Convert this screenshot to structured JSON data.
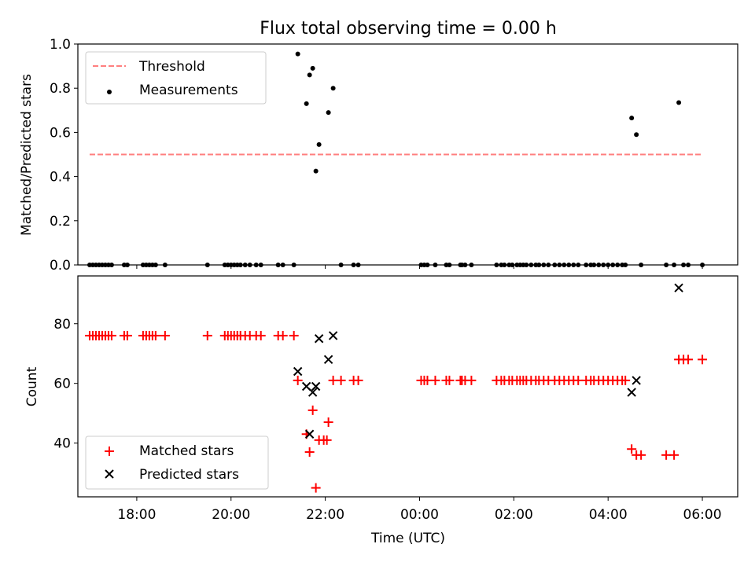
{
  "figure": {
    "title": "Flux total observing time = 0.00 h",
    "xlabel": "Time (UTC)"
  },
  "chart_data": [
    {
      "type": "scatter",
      "title": "Flux total observing time = 0.00 h",
      "ylabel": "Matched/Predicted stars",
      "xlim": [
        "2023-01-01 16:45",
        "2023-01-02 06:45"
      ],
      "ylim": [
        0,
        1.0
      ],
      "yticks": [
        "0.0",
        "0.2",
        "0.4",
        "0.6",
        "0.8",
        "1.0"
      ],
      "legend": {
        "position": "top-left",
        "entries": [
          "Threshold",
          "Measurements"
        ]
      },
      "threshold": {
        "name": "Threshold",
        "value": 0.5,
        "x_start": "2023-01-01 17:00",
        "x_end": "2023-01-02 06:00",
        "color": "#ff7f7f",
        "style": "dashed"
      },
      "series": [
        {
          "name": "Measurements",
          "color": "#000000",
          "marker": "dot",
          "points": [
            [
              "2023-01-01 17:00",
              0
            ],
            [
              "2023-01-01 17:04",
              0
            ],
            [
              "2023-01-01 17:08",
              0
            ],
            [
              "2023-01-01 17:12",
              0
            ],
            [
              "2023-01-01 17:16",
              0
            ],
            [
              "2023-01-01 17:20",
              0
            ],
            [
              "2023-01-01 17:24",
              0
            ],
            [
              "2023-01-01 17:28",
              0
            ],
            [
              "2023-01-01 17:44",
              0
            ],
            [
              "2023-01-01 17:48",
              0
            ],
            [
              "2023-01-01 18:08",
              0
            ],
            [
              "2023-01-01 18:12",
              0
            ],
            [
              "2023-01-01 18:16",
              0
            ],
            [
              "2023-01-01 18:20",
              0
            ],
            [
              "2023-01-01 18:24",
              0
            ],
            [
              "2023-01-01 18:36",
              0
            ],
            [
              "2023-01-01 19:30",
              0
            ],
            [
              "2023-01-01 19:52",
              0
            ],
            [
              "2023-01-01 19:56",
              0
            ],
            [
              "2023-01-01 20:00",
              0
            ],
            [
              "2023-01-01 20:04",
              0
            ],
            [
              "2023-01-01 20:08",
              0
            ],
            [
              "2023-01-01 20:12",
              0
            ],
            [
              "2023-01-01 20:18",
              0
            ],
            [
              "2023-01-01 20:24",
              0
            ],
            [
              "2023-01-01 20:32",
              0
            ],
            [
              "2023-01-01 20:38",
              0
            ],
            [
              "2023-01-01 21:00",
              0
            ],
            [
              "2023-01-01 21:06",
              0
            ],
            [
              "2023-01-01 21:20",
              0
            ],
            [
              "2023-01-01 21:25",
              0.955
            ],
            [
              "2023-01-01 21:36",
              0.73
            ],
            [
              "2023-01-01 21:40",
              0.86
            ],
            [
              "2023-01-01 21:44",
              0.89
            ],
            [
              "2023-01-01 21:48",
              0.425
            ],
            [
              "2023-01-01 21:52",
              0.545
            ],
            [
              "2023-01-01 22:04",
              0.69
            ],
            [
              "2023-01-01 22:10",
              0.8
            ],
            [
              "2023-01-01 22:20",
              0
            ],
            [
              "2023-01-01 22:36",
              0
            ],
            [
              "2023-01-01 22:42",
              0
            ],
            [
              "2023-01-02 00:02",
              0
            ],
            [
              "2023-01-02 00:06",
              0
            ],
            [
              "2023-01-02 00:10",
              0
            ],
            [
              "2023-01-02 00:20",
              0
            ],
            [
              "2023-01-02 00:34",
              0
            ],
            [
              "2023-01-02 00:38",
              0
            ],
            [
              "2023-01-02 00:52",
              0
            ],
            [
              "2023-01-02 00:54",
              0
            ],
            [
              "2023-01-02 00:58",
              0
            ],
            [
              "2023-01-02 01:06",
              0
            ],
            [
              "2023-01-02 01:38",
              0
            ],
            [
              "2023-01-02 01:44",
              0
            ],
            [
              "2023-01-02 01:48",
              0
            ],
            [
              "2023-01-02 01:54",
              0
            ],
            [
              "2023-01-02 01:58",
              0
            ],
            [
              "2023-01-02 02:04",
              0
            ],
            [
              "2023-01-02 02:08",
              0
            ],
            [
              "2023-01-02 02:12",
              0
            ],
            [
              "2023-01-02 02:16",
              0
            ],
            [
              "2023-01-02 02:22",
              0
            ],
            [
              "2023-01-02 02:28",
              0
            ],
            [
              "2023-01-02 02:32",
              0
            ],
            [
              "2023-01-02 02:38",
              0
            ],
            [
              "2023-01-02 02:44",
              0
            ],
            [
              "2023-01-02 02:52",
              0
            ],
            [
              "2023-01-02 02:58",
              0
            ],
            [
              "2023-01-02 03:04",
              0
            ],
            [
              "2023-01-02 03:10",
              0
            ],
            [
              "2023-01-02 03:16",
              0
            ],
            [
              "2023-01-02 03:22",
              0
            ],
            [
              "2023-01-02 03:32",
              0
            ],
            [
              "2023-01-02 03:38",
              0
            ],
            [
              "2023-01-02 03:42",
              0
            ],
            [
              "2023-01-02 03:48",
              0
            ],
            [
              "2023-01-02 03:54",
              0
            ],
            [
              "2023-01-02 04:00",
              0
            ],
            [
              "2023-01-02 04:06",
              0
            ],
            [
              "2023-01-02 04:12",
              0
            ],
            [
              "2023-01-02 04:18",
              0
            ],
            [
              "2023-01-02 04:22",
              0
            ],
            [
              "2023-01-02 04:30",
              0.665
            ],
            [
              "2023-01-02 04:36",
              0.59
            ],
            [
              "2023-01-02 04:42",
              0
            ],
            [
              "2023-01-02 05:14",
              0
            ],
            [
              "2023-01-02 05:24",
              0
            ],
            [
              "2023-01-02 05:30",
              0.735
            ],
            [
              "2023-01-02 05:36",
              0
            ],
            [
              "2023-01-02 05:42",
              0
            ],
            [
              "2023-01-02 06:00",
              0
            ]
          ]
        }
      ]
    },
    {
      "type": "scatter",
      "ylabel": "Count",
      "xlabel": "Time (UTC)",
      "xlim": [
        "2023-01-01 16:45",
        "2023-01-02 06:45"
      ],
      "ylim": [
        22,
        96
      ],
      "yticks": [
        "40",
        "60",
        "80"
      ],
      "xticks": [
        "18:00",
        "20:00",
        "22:00",
        "00:00",
        "02:00",
        "04:00",
        "06:00"
      ],
      "legend": {
        "position": "bottom-left",
        "entries": [
          "Matched stars",
          "Predicted stars"
        ]
      },
      "series": [
        {
          "name": "Matched stars",
          "color": "#ff0000",
          "marker": "plus",
          "points": [
            [
              "2023-01-01 17:00",
              76
            ],
            [
              "2023-01-01 17:04",
              76
            ],
            [
              "2023-01-01 17:08",
              76
            ],
            [
              "2023-01-01 17:12",
              76
            ],
            [
              "2023-01-01 17:16",
              76
            ],
            [
              "2023-01-01 17:20",
              76
            ],
            [
              "2023-01-01 17:24",
              76
            ],
            [
              "2023-01-01 17:28",
              76
            ],
            [
              "2023-01-01 17:44",
              76
            ],
            [
              "2023-01-01 17:48",
              76
            ],
            [
              "2023-01-01 18:08",
              76
            ],
            [
              "2023-01-01 18:12",
              76
            ],
            [
              "2023-01-01 18:16",
              76
            ],
            [
              "2023-01-01 18:20",
              76
            ],
            [
              "2023-01-01 18:24",
              76
            ],
            [
              "2023-01-01 18:36",
              76
            ],
            [
              "2023-01-01 19:30",
              76
            ],
            [
              "2023-01-01 19:52",
              76
            ],
            [
              "2023-01-01 19:56",
              76
            ],
            [
              "2023-01-01 20:00",
              76
            ],
            [
              "2023-01-01 20:04",
              76
            ],
            [
              "2023-01-01 20:08",
              76
            ],
            [
              "2023-01-01 20:12",
              76
            ],
            [
              "2023-01-01 20:18",
              76
            ],
            [
              "2023-01-01 20:24",
              76
            ],
            [
              "2023-01-01 20:32",
              76
            ],
            [
              "2023-01-01 20:38",
              76
            ],
            [
              "2023-01-01 21:00",
              76
            ],
            [
              "2023-01-01 21:06",
              76
            ],
            [
              "2023-01-01 21:20",
              76
            ],
            [
              "2023-01-01 21:25",
              61
            ],
            [
              "2023-01-01 21:36",
              43
            ],
            [
              "2023-01-01 21:40",
              37
            ],
            [
              "2023-01-01 21:44",
              51
            ],
            [
              "2023-01-01 21:48",
              25
            ],
            [
              "2023-01-01 21:52",
              41
            ],
            [
              "2023-01-01 21:58",
              41
            ],
            [
              "2023-01-01 22:02",
              41
            ],
            [
              "2023-01-01 22:04",
              47
            ],
            [
              "2023-01-01 22:10",
              61
            ],
            [
              "2023-01-01 22:20",
              61
            ],
            [
              "2023-01-01 22:36",
              61
            ],
            [
              "2023-01-01 22:42",
              61
            ],
            [
              "2023-01-02 00:02",
              61
            ],
            [
              "2023-01-02 00:06",
              61
            ],
            [
              "2023-01-02 00:10",
              61
            ],
            [
              "2023-01-02 00:20",
              61
            ],
            [
              "2023-01-02 00:34",
              61
            ],
            [
              "2023-01-02 00:38",
              61
            ],
            [
              "2023-01-02 00:52",
              61
            ],
            [
              "2023-01-02 00:54",
              61
            ],
            [
              "2023-01-02 00:58",
              61
            ],
            [
              "2023-01-02 01:06",
              61
            ],
            [
              "2023-01-02 01:38",
              61
            ],
            [
              "2023-01-02 01:44",
              61
            ],
            [
              "2023-01-02 01:48",
              61
            ],
            [
              "2023-01-02 01:54",
              61
            ],
            [
              "2023-01-02 01:58",
              61
            ],
            [
              "2023-01-02 02:04",
              61
            ],
            [
              "2023-01-02 02:08",
              61
            ],
            [
              "2023-01-02 02:12",
              61
            ],
            [
              "2023-01-02 02:16",
              61
            ],
            [
              "2023-01-02 02:22",
              61
            ],
            [
              "2023-01-02 02:28",
              61
            ],
            [
              "2023-01-02 02:32",
              61
            ],
            [
              "2023-01-02 02:38",
              61
            ],
            [
              "2023-01-02 02:44",
              61
            ],
            [
              "2023-01-02 02:52",
              61
            ],
            [
              "2023-01-02 02:58",
              61
            ],
            [
              "2023-01-02 03:04",
              61
            ],
            [
              "2023-01-02 03:10",
              61
            ],
            [
              "2023-01-02 03:16",
              61
            ],
            [
              "2023-01-02 03:22",
              61
            ],
            [
              "2023-01-02 03:32",
              61
            ],
            [
              "2023-01-02 03:38",
              61
            ],
            [
              "2023-01-02 03:42",
              61
            ],
            [
              "2023-01-02 03:48",
              61
            ],
            [
              "2023-01-02 03:54",
              61
            ],
            [
              "2023-01-02 04:00",
              61
            ],
            [
              "2023-01-02 04:06",
              61
            ],
            [
              "2023-01-02 04:12",
              61
            ],
            [
              "2023-01-02 04:18",
              61
            ],
            [
              "2023-01-02 04:22",
              61
            ],
            [
              "2023-01-02 04:30",
              38
            ],
            [
              "2023-01-02 04:36",
              36
            ],
            [
              "2023-01-02 04:42",
              36
            ],
            [
              "2023-01-02 05:14",
              36
            ],
            [
              "2023-01-02 05:24",
              36
            ],
            [
              "2023-01-02 05:30",
              68
            ],
            [
              "2023-01-02 05:36",
              68
            ],
            [
              "2023-01-02 05:42",
              68
            ],
            [
              "2023-01-02 06:00",
              68
            ]
          ]
        },
        {
          "name": "Predicted stars",
          "color": "#000000",
          "marker": "x",
          "points": [
            [
              "2023-01-01 21:25",
              64
            ],
            [
              "2023-01-01 21:36",
              59
            ],
            [
              "2023-01-01 21:40",
              43
            ],
            [
              "2023-01-01 21:44",
              57
            ],
            [
              "2023-01-01 21:48",
              59
            ],
            [
              "2023-01-01 21:52",
              75
            ],
            [
              "2023-01-01 22:04",
              68
            ],
            [
              "2023-01-01 22:10",
              76
            ],
            [
              "2023-01-02 04:30",
              57
            ],
            [
              "2023-01-02 04:36",
              61
            ],
            [
              "2023-01-02 05:30",
              92
            ]
          ]
        }
      ]
    }
  ]
}
